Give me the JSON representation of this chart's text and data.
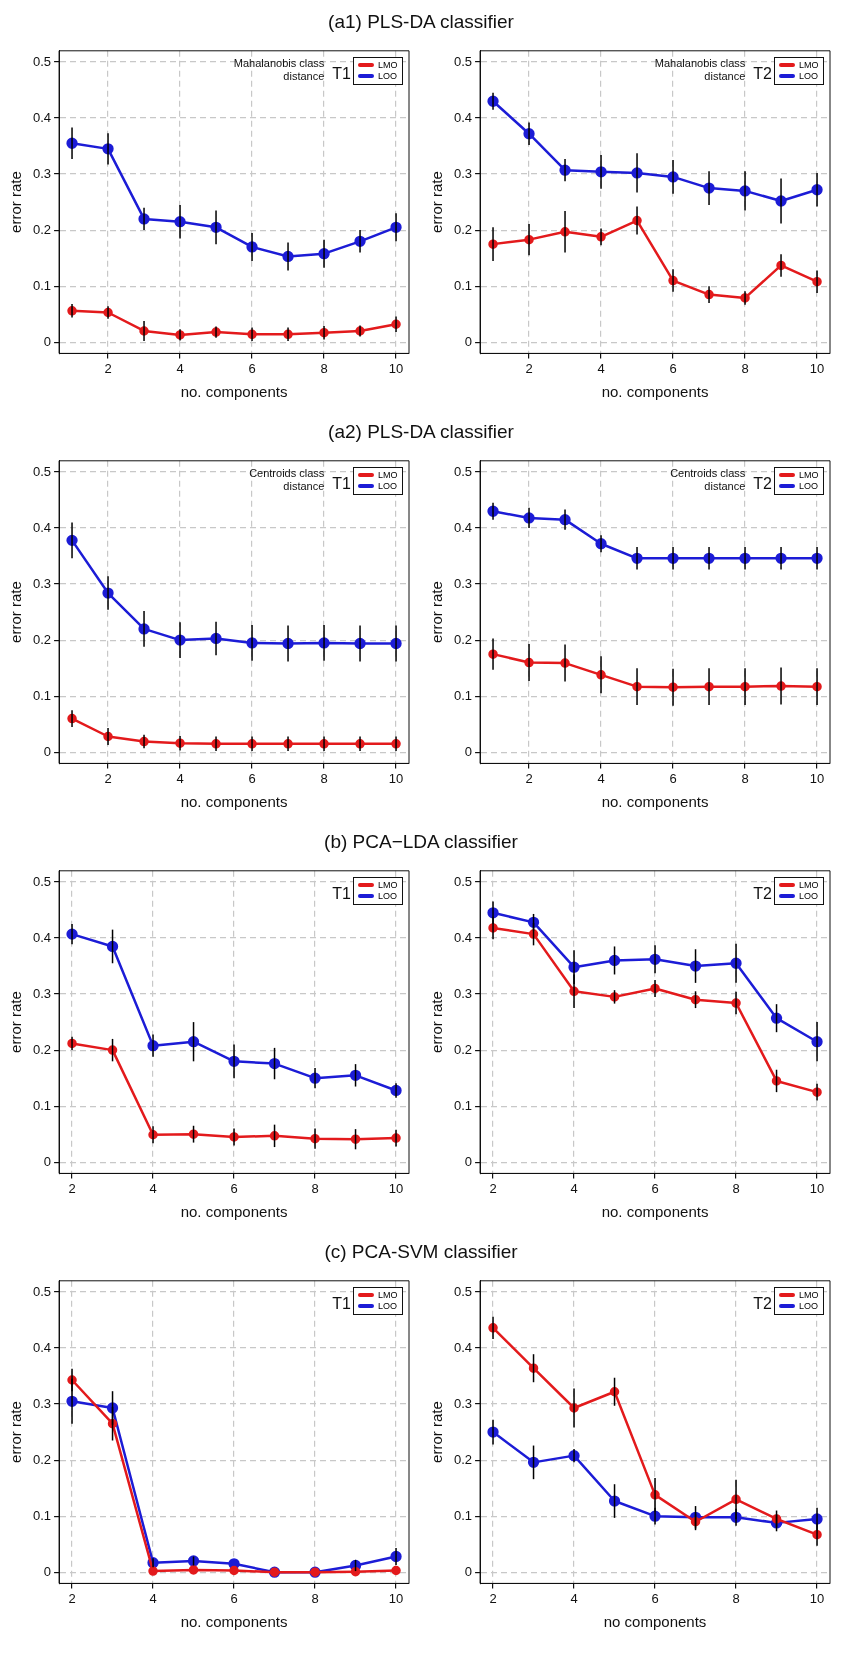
{
  "chart_data": [
    {
      "type": "line",
      "title": "(a1) PLS-DA classifier",
      "xlabel": "no. components",
      "ylabel": "error rate",
      "x": [
        1,
        2,
        3,
        4,
        5,
        6,
        7,
        8,
        9,
        10
      ],
      "xlim": [
        0.64,
        10.36
      ],
      "xticks": [
        2,
        4,
        6,
        8,
        10
      ],
      "ylim": [
        -0.02,
        0.52
      ],
      "yticks": [
        0,
        0.1,
        0.2,
        0.3,
        0.4,
        0.5
      ],
      "grid": true,
      "legend": "top right",
      "marker": "circle",
      "annotations": [
        "Mahalanobis class distance",
        "T1"
      ],
      "series": [
        {
          "name": "LMO",
          "color": "#e31a1c",
          "values": [
            0.056,
            0.053,
            0.02,
            0.013,
            0.018,
            0.014,
            0.014,
            0.017,
            0.02,
            0.032
          ],
          "errors": [
            0.012,
            0.011,
            0.018,
            0.01,
            0.01,
            0.012,
            0.012,
            0.012,
            0.01,
            0.014
          ]
        },
        {
          "name": "LOO",
          "color": "#1c1cd6",
          "values": [
            0.355,
            0.345,
            0.22,
            0.215,
            0.205,
            0.17,
            0.153,
            0.158,
            0.18,
            0.205
          ],
          "errors": [
            0.028,
            0.028,
            0.02,
            0.03,
            0.03,
            0.025,
            0.025,
            0.025,
            0.02,
            0.025
          ]
        }
      ]
    },
    {
      "type": "line",
      "xlabel": "no. components",
      "ylabel": "error rate",
      "x": [
        1,
        2,
        3,
        4,
        5,
        6,
        7,
        8,
        9,
        10
      ],
      "xlim": [
        0.64,
        10.36
      ],
      "xticks": [
        2,
        4,
        6,
        8,
        10
      ],
      "ylim": [
        -0.02,
        0.52
      ],
      "yticks": [
        0,
        0.1,
        0.2,
        0.3,
        0.4,
        0.5
      ],
      "grid": true,
      "legend": "top right",
      "marker": "circle",
      "annotations": [
        "Mahalanobis class distance",
        "T2"
      ],
      "series": [
        {
          "name": "LMO",
          "color": "#e31a1c",
          "values": [
            0.175,
            0.183,
            0.197,
            0.188,
            0.217,
            0.11,
            0.085,
            0.079,
            0.137,
            0.108
          ],
          "errors": [
            0.03,
            0.028,
            0.037,
            0.015,
            0.025,
            0.02,
            0.015,
            0.012,
            0.02,
            0.02
          ]
        },
        {
          "name": "LOO",
          "color": "#1c1cd6",
          "values": [
            0.43,
            0.372,
            0.307,
            0.304,
            0.302,
            0.295,
            0.275,
            0.27,
            0.252,
            0.272
          ],
          "errors": [
            0.015,
            0.02,
            0.02,
            0.03,
            0.035,
            0.03,
            0.03,
            0.035,
            0.04,
            0.03
          ]
        }
      ]
    },
    {
      "type": "line",
      "title": "(a2) PLS-DA classifier",
      "xlabel": "no. components",
      "ylabel": "error rate",
      "x": [
        1,
        2,
        3,
        4,
        5,
        6,
        7,
        8,
        9,
        10
      ],
      "xlim": [
        0.64,
        10.36
      ],
      "xticks": [
        2,
        4,
        6,
        8,
        10
      ],
      "ylim": [
        -0.02,
        0.52
      ],
      "yticks": [
        0,
        0.1,
        0.2,
        0.3,
        0.4,
        0.5
      ],
      "grid": true,
      "legend": "top right",
      "marker": "circle",
      "annotations": [
        "Centroids class distance",
        "T1"
      ],
      "series": [
        {
          "name": "LMO",
          "color": "#e31a1c",
          "values": [
            0.06,
            0.028,
            0.019,
            0.016,
            0.015,
            0.015,
            0.015,
            0.015,
            0.015,
            0.015
          ],
          "errors": [
            0.015,
            0.015,
            0.012,
            0.013,
            0.013,
            0.013,
            0.013,
            0.013,
            0.013,
            0.013
          ]
        },
        {
          "name": "LOO",
          "color": "#1c1cd6",
          "values": [
            0.378,
            0.284,
            0.22,
            0.2,
            0.203,
            0.195,
            0.194,
            0.195,
            0.194,
            0.194
          ],
          "errors": [
            0.032,
            0.03,
            0.032,
            0.032,
            0.03,
            0.032,
            0.032,
            0.032,
            0.032,
            0.032
          ]
        }
      ]
    },
    {
      "type": "line",
      "xlabel": "no. components",
      "ylabel": "error rate",
      "x": [
        1,
        2,
        3,
        4,
        5,
        6,
        7,
        8,
        9,
        10
      ],
      "xlim": [
        0.64,
        10.36
      ],
      "xticks": [
        2,
        4,
        6,
        8,
        10
      ],
      "ylim": [
        -0.02,
        0.52
      ],
      "yticks": [
        0,
        0.1,
        0.2,
        0.3,
        0.4,
        0.5
      ],
      "grid": true,
      "legend": "top right",
      "marker": "circle",
      "annotations": [
        "Centroids class distance",
        "T2"
      ],
      "series": [
        {
          "name": "LMO",
          "color": "#e31a1c",
          "values": [
            0.175,
            0.16,
            0.159,
            0.138,
            0.117,
            0.116,
            0.117,
            0.117,
            0.118,
            0.117
          ],
          "errors": [
            0.028,
            0.033,
            0.033,
            0.033,
            0.033,
            0.033,
            0.033,
            0.033,
            0.033,
            0.033
          ]
        },
        {
          "name": "LOO",
          "color": "#1c1cd6",
          "values": [
            0.43,
            0.418,
            0.415,
            0.372,
            0.346,
            0.346,
            0.346,
            0.346,
            0.346,
            0.346
          ],
          "errors": [
            0.015,
            0.018,
            0.018,
            0.015,
            0.02,
            0.02,
            0.02,
            0.02,
            0.02,
            0.02
          ]
        }
      ]
    },
    {
      "type": "line",
      "title": "(b) PCA−LDA classifier",
      "xlabel": "no. components",
      "ylabel": "error rate",
      "x": [
        2,
        3,
        4,
        5,
        6,
        7,
        8,
        9,
        10
      ],
      "xlim": [
        1.68,
        10.32
      ],
      "xticks": [
        2,
        4,
        6,
        8,
        10
      ],
      "ylim": [
        -0.02,
        0.52
      ],
      "yticks": [
        0,
        0.1,
        0.2,
        0.3,
        0.4,
        0.5
      ],
      "grid": true,
      "legend": "top right",
      "marker": "circle",
      "annotations": [
        "T1"
      ],
      "series": [
        {
          "name": "LMO",
          "color": "#e31a1c",
          "values": [
            0.212,
            0.2,
            0.049,
            0.05,
            0.045,
            0.047,
            0.042,
            0.041,
            0.043
          ],
          "errors": [
            0.012,
            0.02,
            0.015,
            0.015,
            0.015,
            0.02,
            0.018,
            0.018,
            0.015
          ]
        },
        {
          "name": "LOO",
          "color": "#1c1cd6",
          "values": [
            0.407,
            0.385,
            0.208,
            0.215,
            0.18,
            0.176,
            0.15,
            0.155,
            0.128
          ],
          "errors": [
            0.018,
            0.03,
            0.02,
            0.035,
            0.03,
            0.028,
            0.018,
            0.02,
            0.013
          ]
        }
      ]
    },
    {
      "type": "line",
      "xlabel": "no. components",
      "ylabel": "error rate",
      "x": [
        2,
        3,
        4,
        5,
        6,
        7,
        8,
        9,
        10
      ],
      "xlim": [
        1.68,
        10.32
      ],
      "xticks": [
        2,
        4,
        6,
        8,
        10
      ],
      "ylim": [
        -0.02,
        0.52
      ],
      "yticks": [
        0,
        0.1,
        0.2,
        0.3,
        0.4,
        0.5
      ],
      "grid": true,
      "legend": "top right",
      "marker": "circle",
      "annotations": [
        "T2"
      ],
      "series": [
        {
          "name": "LMO",
          "color": "#e31a1c",
          "values": [
            0.418,
            0.407,
            0.305,
            0.295,
            0.31,
            0.29,
            0.284,
            0.145,
            0.125
          ],
          "errors": [
            0.02,
            0.02,
            0.03,
            0.012,
            0.015,
            0.015,
            0.02,
            0.02,
            0.015
          ]
        },
        {
          "name": "LOO",
          "color": "#1c1cd6",
          "values": [
            0.445,
            0.428,
            0.348,
            0.36,
            0.362,
            0.35,
            0.355,
            0.257,
            0.215
          ],
          "errors": [
            0.02,
            0.015,
            0.03,
            0.025,
            0.025,
            0.03,
            0.035,
            0.025,
            0.035
          ]
        }
      ]
    },
    {
      "type": "line",
      "title": "(c) PCA-SVM classifier",
      "xlabel": "no. components",
      "ylabel": "error rate",
      "x": [
        2,
        3,
        4,
        5,
        6,
        7,
        8,
        9,
        10
      ],
      "xlim": [
        1.68,
        10.32
      ],
      "xticks": [
        2,
        4,
        6,
        8,
        10
      ],
      "ylim": [
        -0.02,
        0.52
      ],
      "yticks": [
        0,
        0.1,
        0.2,
        0.3,
        0.4,
        0.5
      ],
      "grid": true,
      "legend": "top right",
      "marker": "circle",
      "annotations": [
        "T1"
      ],
      "series": [
        {
          "name": "LMO",
          "color": "#e31a1c",
          "values": [
            0.343,
            0.265,
            0.002,
            0.004,
            0.003,
            0.0,
            0.0,
            0.001,
            0.003
          ],
          "errors": [
            0.02,
            0.03,
            null,
            null,
            null,
            null,
            null,
            null,
            null
          ]
        },
        {
          "name": "LOO",
          "color": "#1c1cd6",
          "values": [
            0.305,
            0.293,
            0.017,
            0.02,
            0.015,
            0.0,
            0.0,
            0.012,
            0.028
          ],
          "errors": [
            0.04,
            0.03,
            0.008,
            0.008,
            null,
            null,
            null,
            0.01,
            0.015
          ]
        }
      ]
    },
    {
      "type": "line",
      "xlabel": "no components",
      "ylabel": "error rate",
      "x": [
        2,
        3,
        4,
        5,
        6,
        7,
        8,
        9,
        10
      ],
      "xlim": [
        1.68,
        10.32
      ],
      "xticks": [
        2,
        4,
        6,
        8,
        10
      ],
      "ylim": [
        -0.02,
        0.52
      ],
      "yticks": [
        0,
        0.1,
        0.2,
        0.3,
        0.4,
        0.5
      ],
      "grid": true,
      "legend": "top right",
      "marker": "circle",
      "annotations": [
        "T2"
      ],
      "series": [
        {
          "name": "LMO",
          "color": "#e31a1c",
          "values": [
            0.436,
            0.364,
            0.293,
            0.322,
            0.138,
            0.09,
            0.13,
            0.095,
            0.067
          ],
          "errors": [
            0.02,
            0.025,
            0.035,
            0.025,
            0.03,
            0.015,
            0.035,
            0.015,
            0.02
          ]
        },
        {
          "name": "LOO",
          "color": "#1c1cd6",
          "values": [
            0.25,
            0.196,
            0.208,
            0.127,
            0.1,
            0.098,
            0.098,
            0.088,
            0.095
          ],
          "errors": [
            0.022,
            0.03,
            0.012,
            0.03,
            0.015,
            0.02,
            0.015,
            0.015,
            0.02
          ]
        }
      ]
    }
  ]
}
